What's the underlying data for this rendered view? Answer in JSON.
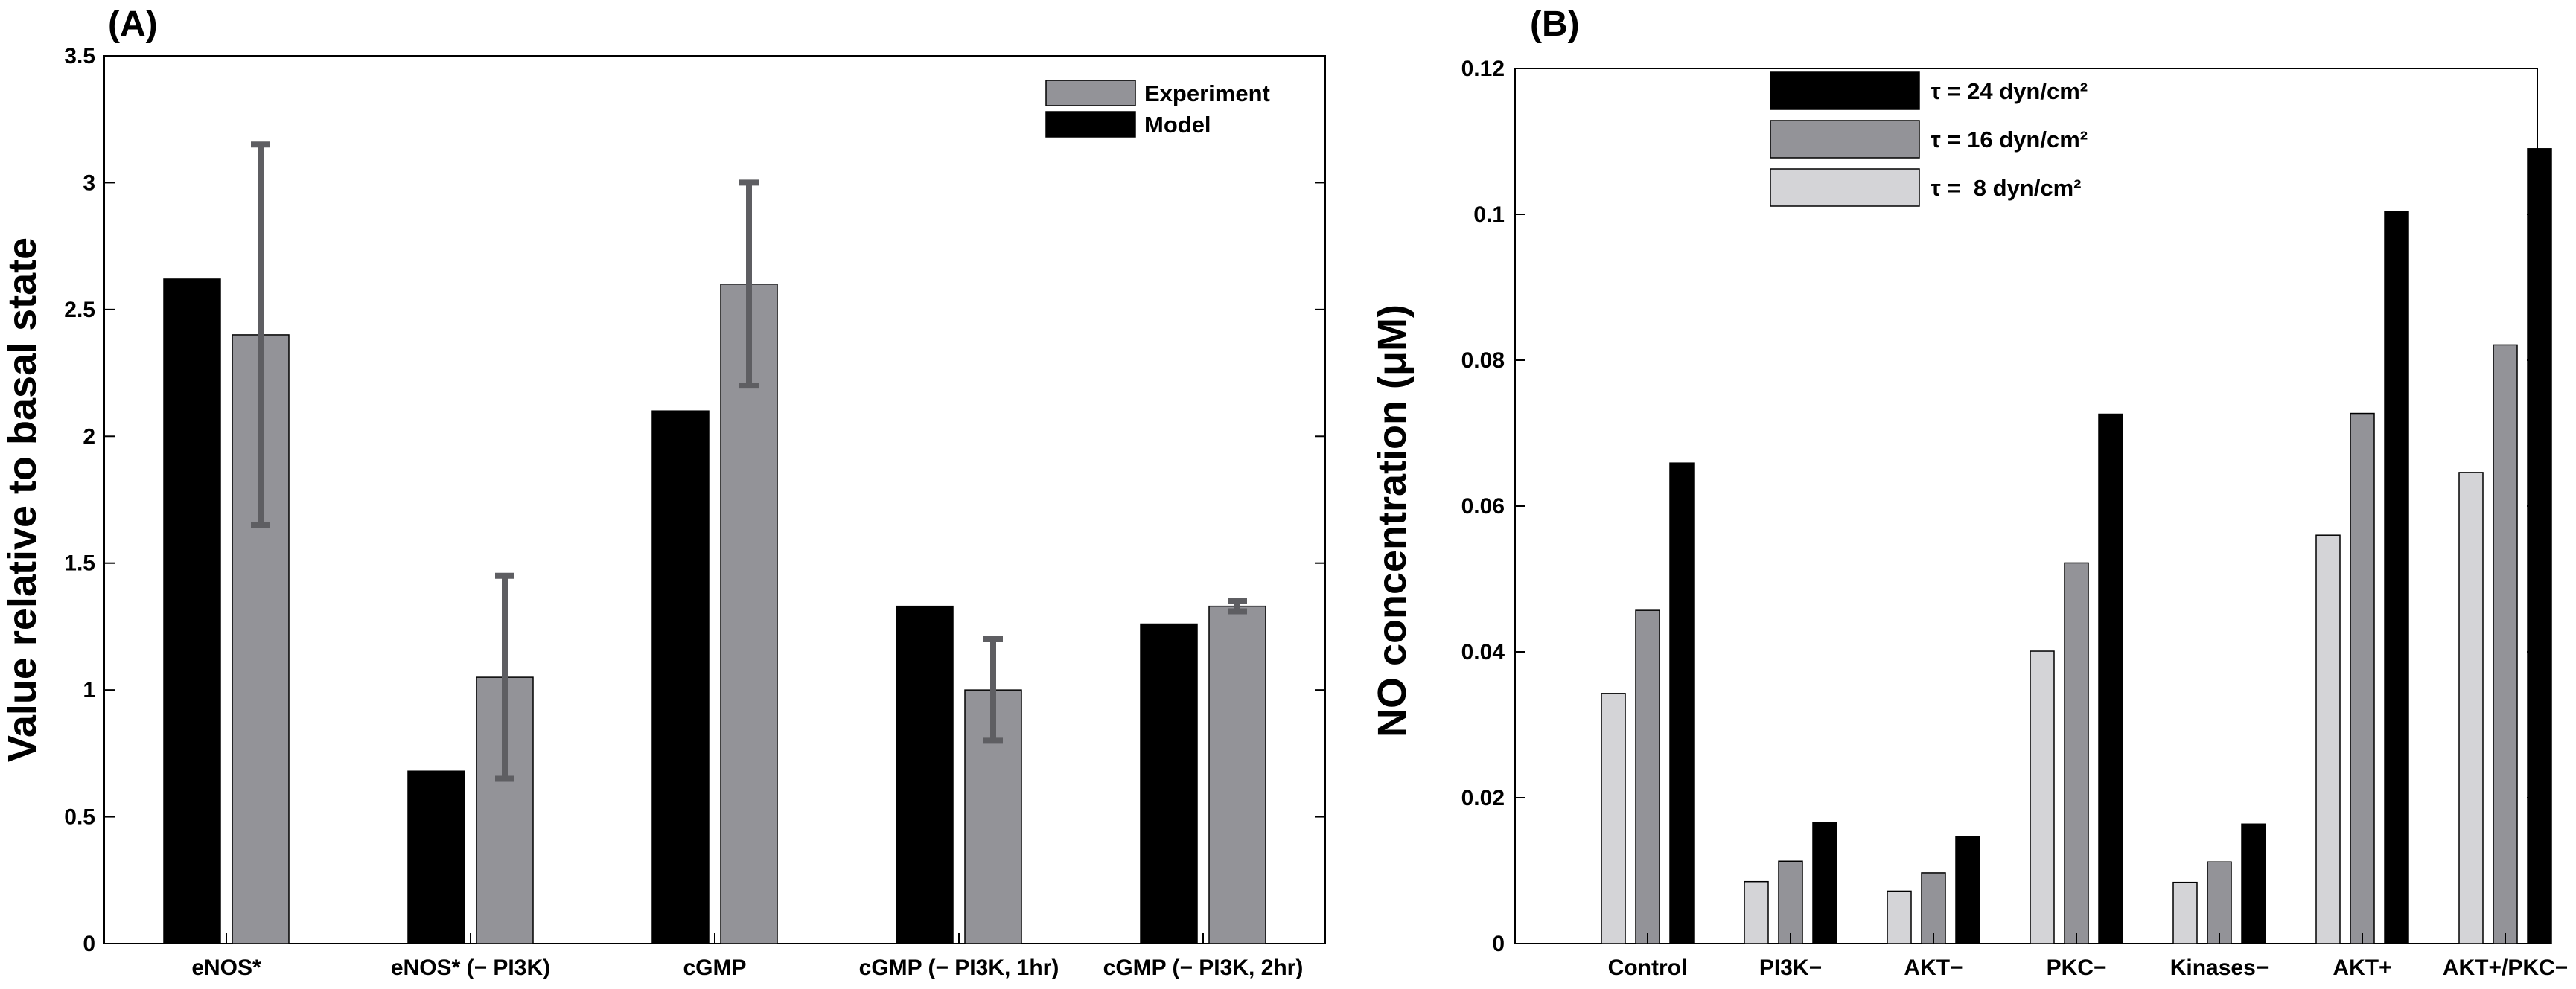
{
  "chart_data": [
    {
      "panel": "(A)",
      "type": "bar",
      "ylabel": "Value relative to basal state",
      "xlabel": "",
      "ylim": [
        0,
        3.5
      ],
      "yticks": [
        "0",
        "0.5",
        "1",
        "1.5",
        "2",
        "2.5",
        "3",
        "3.5"
      ],
      "categories": [
        "eNOS*",
        "eNOS* (− PI3K)",
        "cGMP",
        "cGMP (− PI3K, 1hr)",
        "cGMP (− PI3K, 2hr)"
      ],
      "legend_position": "top-right",
      "series": [
        {
          "name": "Model",
          "color": "#000000",
          "values": [
            2.62,
            0.68,
            2.1,
            1.33,
            1.26
          ]
        },
        {
          "name": "Experiment",
          "color": "#939398",
          "values": [
            2.4,
            1.05,
            2.6,
            1.0,
            1.33
          ],
          "error_low": [
            1.65,
            0.65,
            2.2,
            0.8,
            1.31
          ],
          "error_high": [
            3.15,
            1.45,
            3.0,
            1.2,
            1.35
          ]
        }
      ],
      "legend_order": [
        "Experiment",
        "Model"
      ]
    },
    {
      "panel": "(B)",
      "type": "bar",
      "ylabel": "NO concentration (μM)",
      "xlabel": "",
      "ylim": [
        0,
        0.12
      ],
      "yticks": [
        "0",
        "0.02",
        "0.04",
        "0.06",
        "0.08",
        "0.1",
        "0.12"
      ],
      "categories": [
        "Control",
        "PI3K−",
        "AKT−",
        "PKC−",
        "Kinases−",
        "AKT+",
        "AKT+/PKC−"
      ],
      "legend_position": "top-left",
      "series": [
        {
          "name": "τ =  8 dyn/cm²",
          "color": "#d4d4d7",
          "values": [
            0.0343,
            0.0085,
            0.0072,
            0.0401,
            0.0084,
            0.056,
            0.0646
          ]
        },
        {
          "name": "τ = 16 dyn/cm²",
          "color": "#939398",
          "values": [
            0.0457,
            0.0113,
            0.0097,
            0.0522,
            0.0112,
            0.0727,
            0.0821
          ]
        },
        {
          "name": "τ = 24 dyn/cm²",
          "color": "#000000",
          "values": [
            0.0659,
            0.0166,
            0.0147,
            0.0726,
            0.0164,
            0.1004,
            0.109
          ]
        }
      ],
      "legend_order": [
        "τ = 24 dyn/cm²",
        "τ = 16 dyn/cm²",
        "τ =  8 dyn/cm²"
      ]
    }
  ]
}
